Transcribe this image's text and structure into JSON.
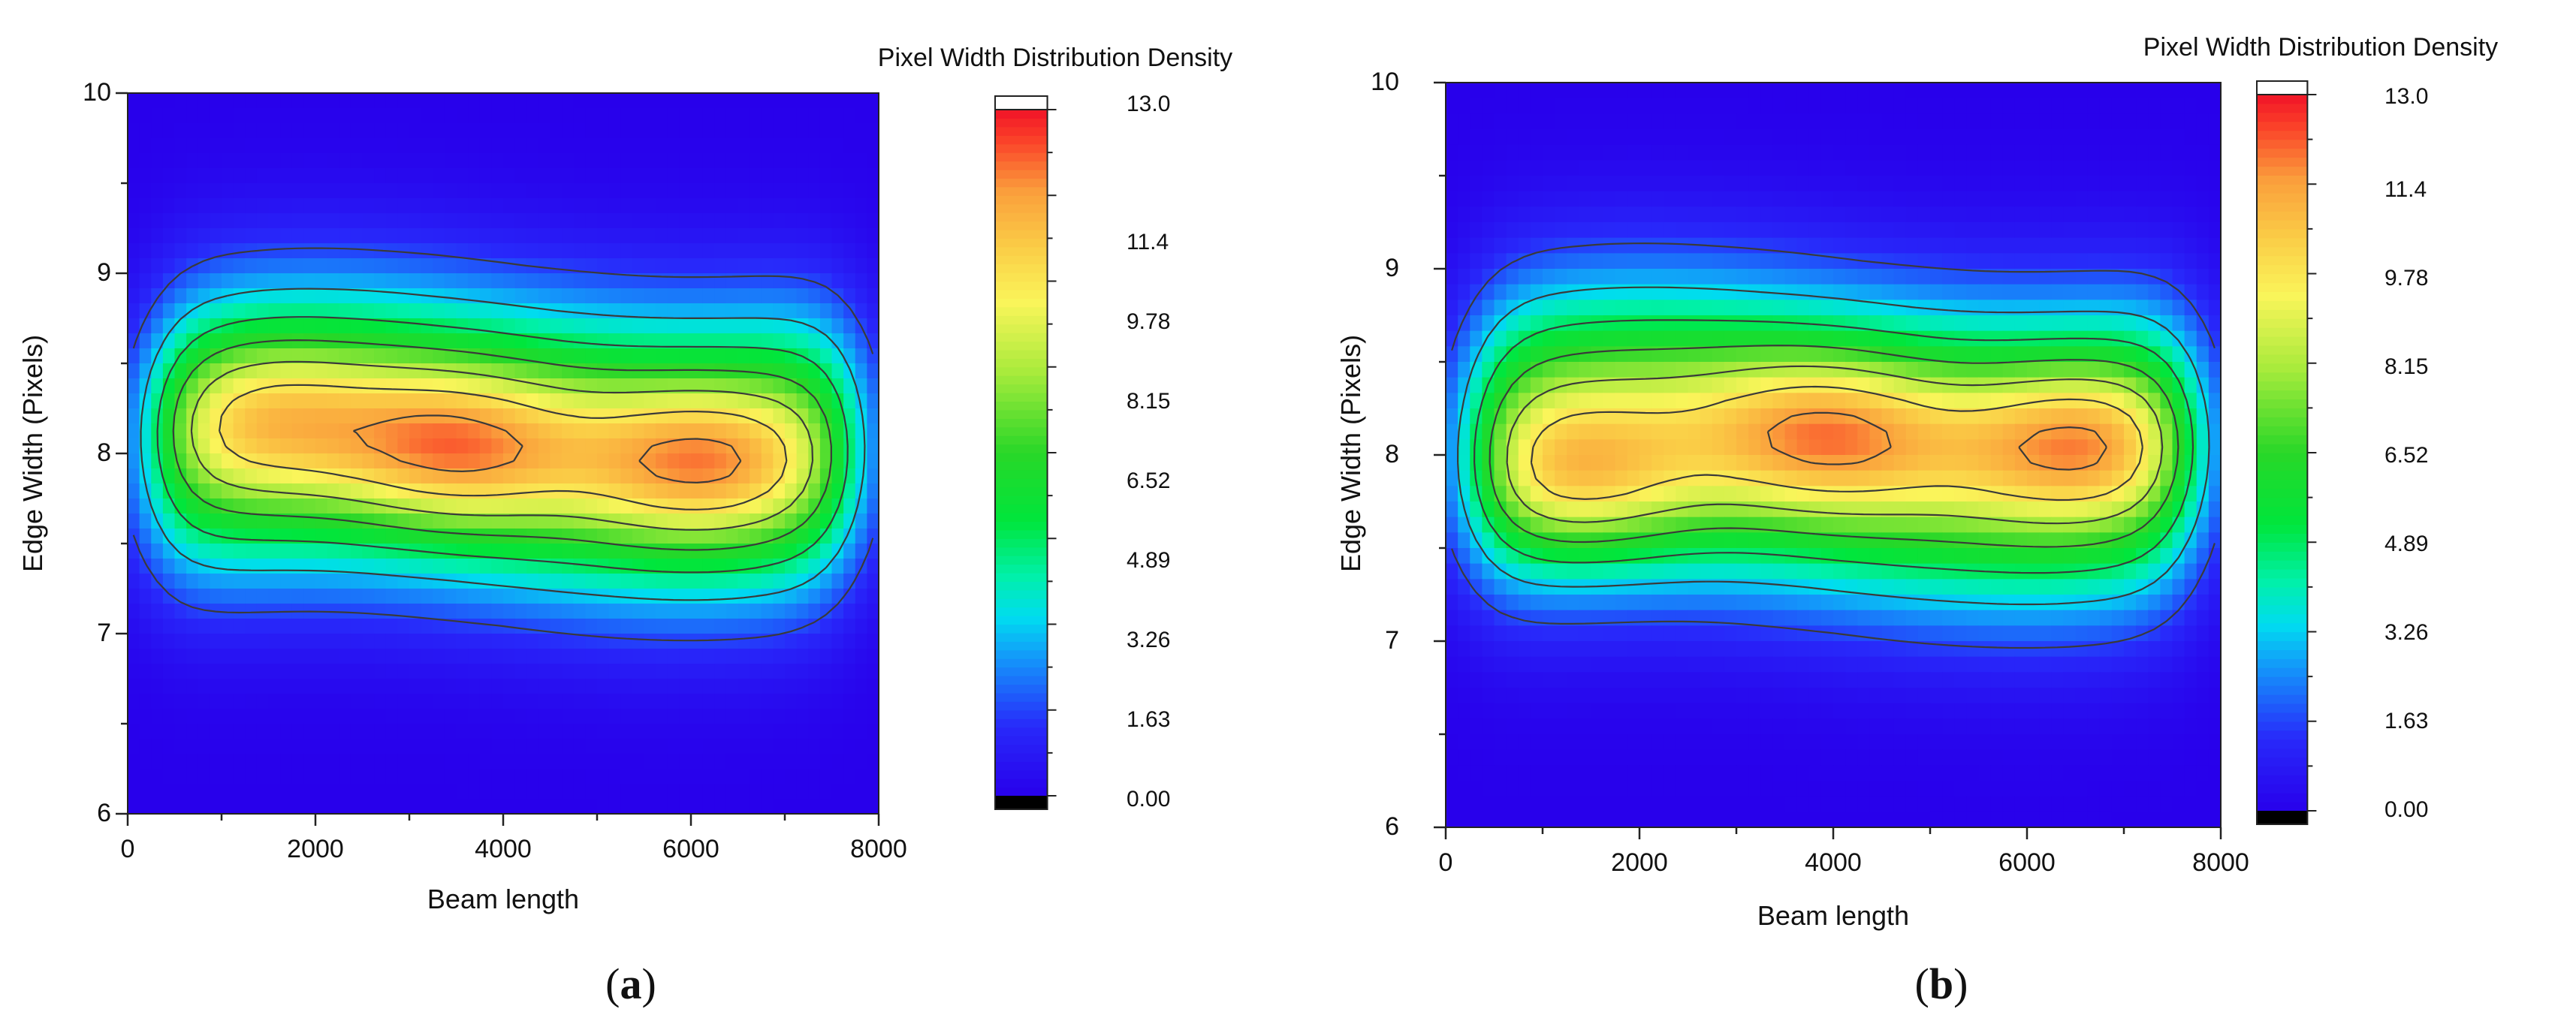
{
  "chart_data": [
    {
      "type": "heatmap",
      "panel_label": "a",
      "colorbar_title": "Pixel Width Distribution Density",
      "xlabel": "Beam length",
      "ylabel": "Edge Width (Pixels)",
      "xlim": [
        0,
        8000
      ],
      "ylim": [
        6,
        10
      ],
      "x_ticks": [
        "0",
        "2000",
        "4000",
        "6000",
        "8000"
      ],
      "y_ticks": [
        "6",
        "7",
        "8",
        "9",
        "10"
      ],
      "colorbar_range": [
        0,
        13.04
      ],
      "colorbar_ticks": [
        "0.00",
        "1.63",
        "3.26",
        "4.89",
        "6.52",
        "8.15",
        "9.78",
        "11.4",
        "13.0"
      ],
      "contour_levels": [
        1.63,
        3.26,
        4.89,
        6.52,
        8.15,
        9.78,
        11.4
      ],
      "peaks": [
        {
          "x": 3500,
          "y": 8.02,
          "value": 12.0
        },
        {
          "x": 6100,
          "y": 7.95,
          "value": 11.9
        },
        {
          "x": 1500,
          "y": 8.2,
          "value": 10.9
        }
      ]
    },
    {
      "type": "heatmap",
      "panel_label": "b",
      "colorbar_title": "Pixel Width Distribution Density",
      "xlabel": "Beam length",
      "ylabel": "Edge Width (Pixels)",
      "xlim": [
        0,
        8000
      ],
      "ylim": [
        6,
        10
      ],
      "x_ticks": [
        "0",
        "2000",
        "4000",
        "6000",
        "8000"
      ],
      "y_ticks": [
        "6",
        "7",
        "8",
        "9",
        "10"
      ],
      "colorbar_range": [
        0,
        13.04
      ],
      "colorbar_ticks": [
        "0.00",
        "1.63",
        "3.26",
        "4.89",
        "6.52",
        "8.15",
        "9.78",
        "11.4",
        "13.0"
      ],
      "contour_levels": [
        1.63,
        3.26,
        4.89,
        6.52,
        8.15,
        9.78,
        11.4
      ],
      "peaks": [
        {
          "x": 1350,
          "y": 7.85,
          "value": 11.7
        },
        {
          "x": 3950,
          "y": 8.12,
          "value": 12.0
        },
        {
          "x": 6550,
          "y": 8.08,
          "value": 12.0
        }
      ]
    }
  ]
}
